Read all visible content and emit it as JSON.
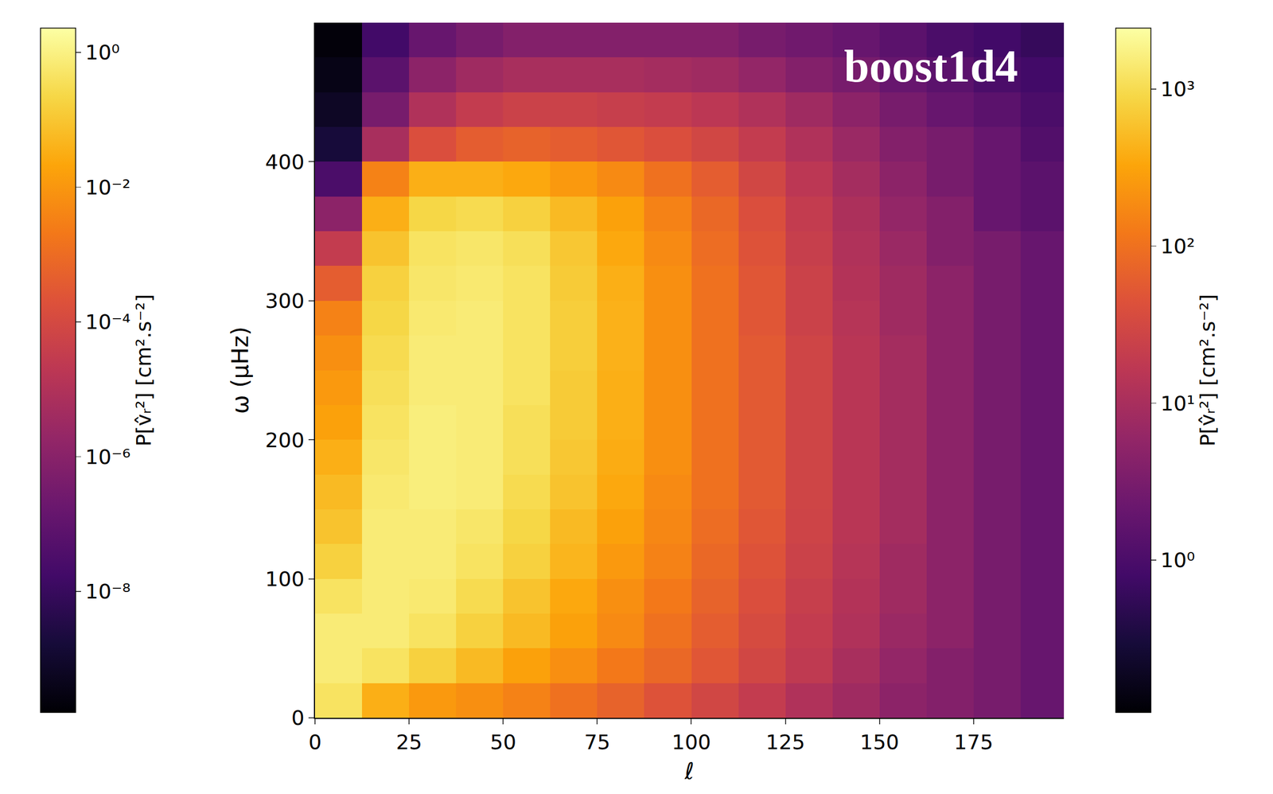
{
  "chart_data": {
    "type": "heatmap",
    "title": "boost1d4",
    "x_label": "ℓ",
    "y_label": "ω (μHz)",
    "xlim": [
      0,
      199
    ],
    "ylim": [
      0,
      500
    ],
    "xticks": [
      0,
      25,
      50,
      75,
      100,
      125,
      150,
      175
    ],
    "yticks": [
      0,
      100,
      200,
      300,
      400
    ],
    "grid": false,
    "x": [
      6.25,
      18.75,
      31.25,
      43.75,
      56.25,
      68.75,
      81.25,
      93.75,
      106.25,
      118.75,
      131.25,
      143.75,
      156.25,
      168.75,
      181.25,
      193.75
    ],
    "y": [
      12.5,
      37.5,
      62.5,
      87.5,
      112.5,
      137.5,
      162.5,
      187.5,
      212.5,
      237.5,
      262.5,
      287.5,
      312.5,
      337.5,
      362.5,
      387.5,
      412.5,
      437.5,
      462.5,
      487.5
    ],
    "z": [
      [
        1200,
        400,
        250,
        200,
        150,
        100,
        70,
        45,
        30,
        20,
        12,
        8,
        5,
        4,
        3,
        2
      ],
      [
        1500,
        1200,
        800,
        500,
        300,
        200,
        120,
        80,
        50,
        30,
        18,
        10,
        6,
        4,
        3,
        2
      ],
      [
        1500,
        1500,
        1200,
        800,
        500,
        300,
        180,
        100,
        60,
        35,
        20,
        12,
        7,
        5,
        3,
        2
      ],
      [
        1200,
        1500,
        1400,
        1000,
        600,
        350,
        200,
        120,
        70,
        40,
        22,
        13,
        8,
        5,
        3,
        2
      ],
      [
        800,
        1500,
        1500,
        1200,
        800,
        450,
        250,
        150,
        80,
        45,
        25,
        14,
        8,
        5,
        3,
        2
      ],
      [
        600,
        1500,
        1500,
        1300,
        900,
        500,
        300,
        170,
        90,
        50,
        27,
        15,
        9,
        5,
        3,
        2
      ],
      [
        500,
        1400,
        1600,
        1500,
        1000,
        600,
        350,
        180,
        100,
        55,
        28,
        15,
        9,
        5,
        3,
        2
      ],
      [
        400,
        1300,
        1600,
        1500,
        1100,
        650,
        380,
        200,
        100,
        55,
        28,
        15,
        9,
        5,
        3,
        2
      ],
      [
        300,
        1200,
        1600,
        1500,
        1100,
        700,
        400,
        200,
        100,
        55,
        28,
        15,
        9,
        5,
        3,
        2
      ],
      [
        250,
        1100,
        1500,
        1500,
        1200,
        700,
        400,
        200,
        100,
        55,
        28,
        15,
        9,
        5,
        3,
        2
      ],
      [
        200,
        1000,
        1500,
        1500,
        1200,
        750,
        420,
        200,
        100,
        55,
        28,
        15,
        9,
        5,
        3,
        2
      ],
      [
        150,
        900,
        1400,
        1500,
        1200,
        750,
        420,
        200,
        100,
        50,
        25,
        14,
        8,
        5,
        3,
        2
      ],
      [
        60,
        800,
        1300,
        1400,
        1200,
        700,
        400,
        200,
        100,
        50,
        25,
        13,
        8,
        5,
        3,
        2
      ],
      [
        20,
        600,
        1200,
        1300,
        1100,
        650,
        350,
        180,
        90,
        45,
        22,
        12,
        7,
        4,
        3,
        2
      ],
      [
        5,
        400,
        900,
        1000,
        800,
        500,
        300,
        150,
        80,
        40,
        20,
        11,
        6,
        4,
        2,
        1.5
      ],
      [
        1,
        150,
        400,
        400,
        350,
        250,
        180,
        100,
        60,
        30,
        16,
        9,
        5,
        3,
        2,
        1.5
      ],
      [
        0.3,
        10,
        40,
        60,
        70,
        60,
        50,
        40,
        30,
        20,
        12,
        7,
        4,
        3,
        2,
        1.2
      ],
      [
        0.2,
        3,
        12,
        20,
        25,
        25,
        22,
        20,
        16,
        12,
        8,
        5,
        3,
        2,
        1.5,
        1
      ],
      [
        0.15,
        1.5,
        5,
        8,
        10,
        10,
        10,
        9,
        8,
        6,
        4,
        3,
        2,
        1.5,
        1,
        0.8
      ],
      [
        0.12,
        0.8,
        2,
        3,
        4,
        4,
        4,
        4,
        4,
        3,
        2.5,
        2,
        1.5,
        1,
        0.8,
        0.6
      ]
    ],
    "colorbars": [
      {
        "label": "P[v̂ᵣ²] [cm².s⁻²]",
        "range": [
          1.6e-10,
          2.3
        ],
        "ticks": [
          {
            "value": 1e-08,
            "label": "10⁻⁸"
          },
          {
            "value": 1e-06,
            "label": "10⁻⁶"
          },
          {
            "value": 0.0001,
            "label": "10⁻⁴"
          },
          {
            "value": 0.01,
            "label": "10⁻²"
          },
          {
            "value": 1,
            "label": "10⁰"
          }
        ]
      },
      {
        "label": "P[v̂ᵣ²] [cm².s⁻²]",
        "range": [
          0.107,
          2450
        ],
        "ticks": [
          {
            "value": 1,
            "label": "10⁰"
          },
          {
            "value": 10,
            "label": "10¹"
          },
          {
            "value": 100,
            "label": "10²"
          },
          {
            "value": 1000,
            "label": "10³"
          }
        ]
      }
    ]
  }
}
